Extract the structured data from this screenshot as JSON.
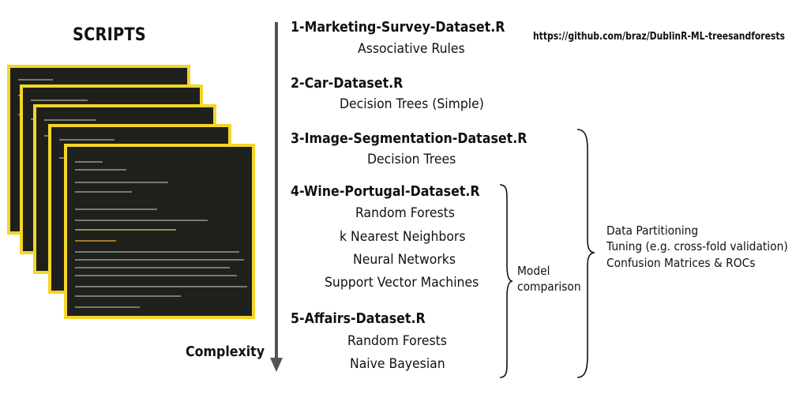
{
  "title": "SCRIPTS",
  "repository_url": "https://github.com/braz/DublinR-ML-treesandforests",
  "complexity_label": "Complexity",
  "datasets": [
    {
      "title": "1-Marketing-Survey-Dataset.R",
      "methods": [
        "Associative Rules"
      ]
    },
    {
      "title": "2-Car-Dataset.R",
      "methods": [
        "Decision Trees (Simple)"
      ]
    },
    {
      "title": "3-Image-Segmentation-Dataset.R",
      "methods": [
        "Decision Trees"
      ]
    },
    {
      "title": "4-Wine-Portugal-Dataset.R",
      "methods": [
        "Random Forests",
        "k Nearest Neighbors",
        "Neural Networks",
        "Support Vector Machines"
      ]
    },
    {
      "title": "5-Affairs-Dataset.R",
      "methods": [
        "Random Forests",
        "Naive Bayesian"
      ]
    }
  ],
  "model_comparison": {
    "line1": "Model",
    "line2": "comparison"
  },
  "shared_topics": [
    "Data Partitioning",
    "Tuning (e.g. cross-fold validation)",
    "Confusion Matrices & ROCs"
  ],
  "colors": {
    "card_border": "#f4d52a",
    "card_background": "#1f201c",
    "arrow": "#555555",
    "text": "#111111"
  }
}
